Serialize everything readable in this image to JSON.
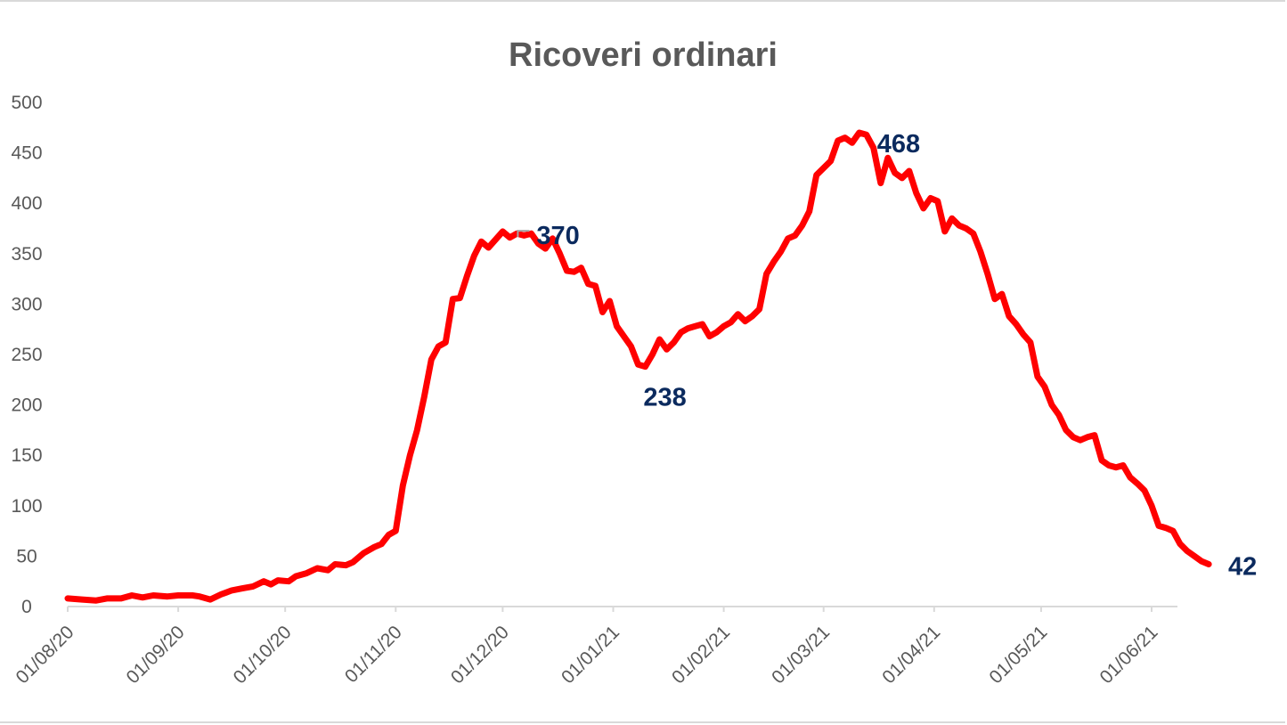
{
  "chart_data": {
    "type": "line",
    "title": "Ricoveri ordinari",
    "xlabel": "",
    "ylabel": "",
    "ylim": [
      0,
      500
    ],
    "yticks": [
      "0",
      "50",
      "100",
      "150",
      "200",
      "250",
      "300",
      "350",
      "400",
      "450",
      "500"
    ],
    "xlim": [
      "2020-08-01",
      "2021-06-10"
    ],
    "xticks": [
      {
        "date": "2020-08-01",
        "label": "01/08/20"
      },
      {
        "date": "2020-09-01",
        "label": "01/09/20"
      },
      {
        "date": "2020-10-01",
        "label": "01/10/20"
      },
      {
        "date": "2020-11-01",
        "label": "01/11/20"
      },
      {
        "date": "2020-12-01",
        "label": "01/12/20"
      },
      {
        "date": "2021-01-01",
        "label": "01/01/21"
      },
      {
        "date": "2021-02-01",
        "label": "01/02/21"
      },
      {
        "date": "2021-03-01",
        "label": "01/03/21"
      },
      {
        "date": "2021-04-01",
        "label": "01/04/21"
      },
      {
        "date": "2021-05-01",
        "label": "01/05/21"
      },
      {
        "date": "2021-06-01",
        "label": "01/06/21"
      }
    ],
    "grid": false,
    "legend": "none",
    "series": [
      {
        "color": "#ff0000",
        "points": [
          [
            "2020-08-01",
            8
          ],
          [
            "2020-08-05",
            7
          ],
          [
            "2020-08-09",
            6
          ],
          [
            "2020-08-12",
            8
          ],
          [
            "2020-08-16",
            8
          ],
          [
            "2020-08-19",
            11
          ],
          [
            "2020-08-22",
            9
          ],
          [
            "2020-08-25",
            11
          ],
          [
            "2020-08-29",
            10
          ],
          [
            "2020-09-01",
            11
          ],
          [
            "2020-09-05",
            11
          ],
          [
            "2020-09-07",
            10
          ],
          [
            "2020-09-10",
            7
          ],
          [
            "2020-09-13",
            12
          ],
          [
            "2020-09-16",
            16
          ],
          [
            "2020-09-19",
            18
          ],
          [
            "2020-09-22",
            20
          ],
          [
            "2020-09-25",
            25
          ],
          [
            "2020-09-27",
            22
          ],
          [
            "2020-09-29",
            26
          ],
          [
            "2020-10-02",
            25
          ],
          [
            "2020-10-04",
            30
          ],
          [
            "2020-10-07",
            33
          ],
          [
            "2020-10-10",
            38
          ],
          [
            "2020-10-13",
            36
          ],
          [
            "2020-10-15",
            42
          ],
          [
            "2020-10-18",
            41
          ],
          [
            "2020-10-20",
            44
          ],
          [
            "2020-10-23",
            53
          ],
          [
            "2020-10-26",
            59
          ],
          [
            "2020-10-28",
            62
          ],
          [
            "2020-10-30",
            71
          ],
          [
            "2020-11-01",
            75
          ],
          [
            "2020-11-03",
            120
          ],
          [
            "2020-11-05",
            150
          ],
          [
            "2020-11-07",
            175
          ],
          [
            "2020-11-09",
            208
          ],
          [
            "2020-11-11",
            245
          ],
          [
            "2020-11-13",
            258
          ],
          [
            "2020-11-15",
            262
          ],
          [
            "2020-11-17",
            305
          ],
          [
            "2020-11-19",
            306
          ],
          [
            "2020-11-21",
            328
          ],
          [
            "2020-11-23",
            348
          ],
          [
            "2020-11-25",
            362
          ],
          [
            "2020-11-27",
            356
          ],
          [
            "2020-11-29",
            364
          ],
          [
            "2020-12-01",
            372
          ],
          [
            "2020-12-03",
            366
          ],
          [
            "2020-12-05",
            370
          ],
          [
            "2020-12-07",
            368
          ],
          [
            "2020-12-09",
            370
          ],
          [
            "2020-12-11",
            360
          ],
          [
            "2020-12-13",
            355
          ],
          [
            "2020-12-15",
            365
          ],
          [
            "2020-12-17",
            350
          ],
          [
            "2020-12-19",
            333
          ],
          [
            "2020-12-21",
            332
          ],
          [
            "2020-12-23",
            336
          ],
          [
            "2020-12-25",
            320
          ],
          [
            "2020-12-27",
            318
          ],
          [
            "2020-12-29",
            292
          ],
          [
            "2020-12-31",
            303
          ],
          [
            "2021-01-02",
            278
          ],
          [
            "2021-01-04",
            268
          ],
          [
            "2021-01-06",
            258
          ],
          [
            "2021-01-08",
            240
          ],
          [
            "2021-01-10",
            238
          ],
          [
            "2021-01-12",
            250
          ],
          [
            "2021-01-14",
            265
          ],
          [
            "2021-01-16",
            255
          ],
          [
            "2021-01-18",
            262
          ],
          [
            "2021-01-20",
            272
          ],
          [
            "2021-01-22",
            276
          ],
          [
            "2021-01-24",
            278
          ],
          [
            "2021-01-26",
            280
          ],
          [
            "2021-01-28",
            268
          ],
          [
            "2021-01-30",
            272
          ],
          [
            "2021-02-01",
            278
          ],
          [
            "2021-02-03",
            282
          ],
          [
            "2021-02-05",
            290
          ],
          [
            "2021-02-07",
            283
          ],
          [
            "2021-02-09",
            288
          ],
          [
            "2021-02-11",
            295
          ],
          [
            "2021-02-13",
            330
          ],
          [
            "2021-02-15",
            342
          ],
          [
            "2021-02-17",
            352
          ],
          [
            "2021-02-19",
            365
          ],
          [
            "2021-02-21",
            368
          ],
          [
            "2021-02-23",
            378
          ],
          [
            "2021-02-25",
            392
          ],
          [
            "2021-02-27",
            428
          ],
          [
            "2021-03-01",
            435
          ],
          [
            "2021-03-03",
            442
          ],
          [
            "2021-03-05",
            462
          ],
          [
            "2021-03-07",
            465
          ],
          [
            "2021-03-09",
            460
          ],
          [
            "2021-03-11",
            470
          ],
          [
            "2021-03-13",
            468
          ],
          [
            "2021-03-15",
            455
          ],
          [
            "2021-03-17",
            420
          ],
          [
            "2021-03-19",
            445
          ],
          [
            "2021-03-21",
            430
          ],
          [
            "2021-03-23",
            425
          ],
          [
            "2021-03-25",
            432
          ],
          [
            "2021-03-27",
            410
          ],
          [
            "2021-03-29",
            395
          ],
          [
            "2021-03-31",
            405
          ],
          [
            "2021-04-02",
            402
          ],
          [
            "2021-04-04",
            372
          ],
          [
            "2021-04-06",
            385
          ],
          [
            "2021-04-08",
            378
          ],
          [
            "2021-04-10",
            375
          ],
          [
            "2021-04-12",
            370
          ],
          [
            "2021-04-14",
            352
          ],
          [
            "2021-04-16",
            330
          ],
          [
            "2021-04-18",
            305
          ],
          [
            "2021-04-20",
            310
          ],
          [
            "2021-04-22",
            288
          ],
          [
            "2021-04-24",
            280
          ],
          [
            "2021-04-26",
            270
          ],
          [
            "2021-04-28",
            262
          ],
          [
            "2021-04-30",
            228
          ],
          [
            "2021-05-02",
            218
          ],
          [
            "2021-05-04",
            200
          ],
          [
            "2021-05-06",
            190
          ],
          [
            "2021-05-08",
            175
          ],
          [
            "2021-05-10",
            168
          ],
          [
            "2021-05-12",
            165
          ],
          [
            "2021-05-14",
            168
          ],
          [
            "2021-05-16",
            170
          ],
          [
            "2021-05-18",
            145
          ],
          [
            "2021-05-20",
            140
          ],
          [
            "2021-05-22",
            138
          ],
          [
            "2021-05-24",
            140
          ],
          [
            "2021-05-26",
            128
          ],
          [
            "2021-05-28",
            122
          ],
          [
            "2021-05-30",
            115
          ],
          [
            "2021-06-01",
            100
          ],
          [
            "2021-06-03",
            80
          ],
          [
            "2021-06-05",
            78
          ],
          [
            "2021-06-07",
            75
          ],
          [
            "2021-06-09",
            62
          ],
          [
            "2021-06-11",
            55
          ],
          [
            "2021-06-13",
            50
          ],
          [
            "2021-06-15",
            45
          ],
          [
            "2021-06-17",
            42
          ]
        ]
      }
    ],
    "data_labels": [
      {
        "date": "2020-12-05",
        "value": 370,
        "text": "370"
      },
      {
        "date": "2021-01-10",
        "value": 238,
        "text": "238"
      },
      {
        "date": "2021-03-13",
        "value": 468,
        "text": "468"
      },
      {
        "date": "2021-06-17",
        "value": 42,
        "text": "42"
      }
    ]
  }
}
